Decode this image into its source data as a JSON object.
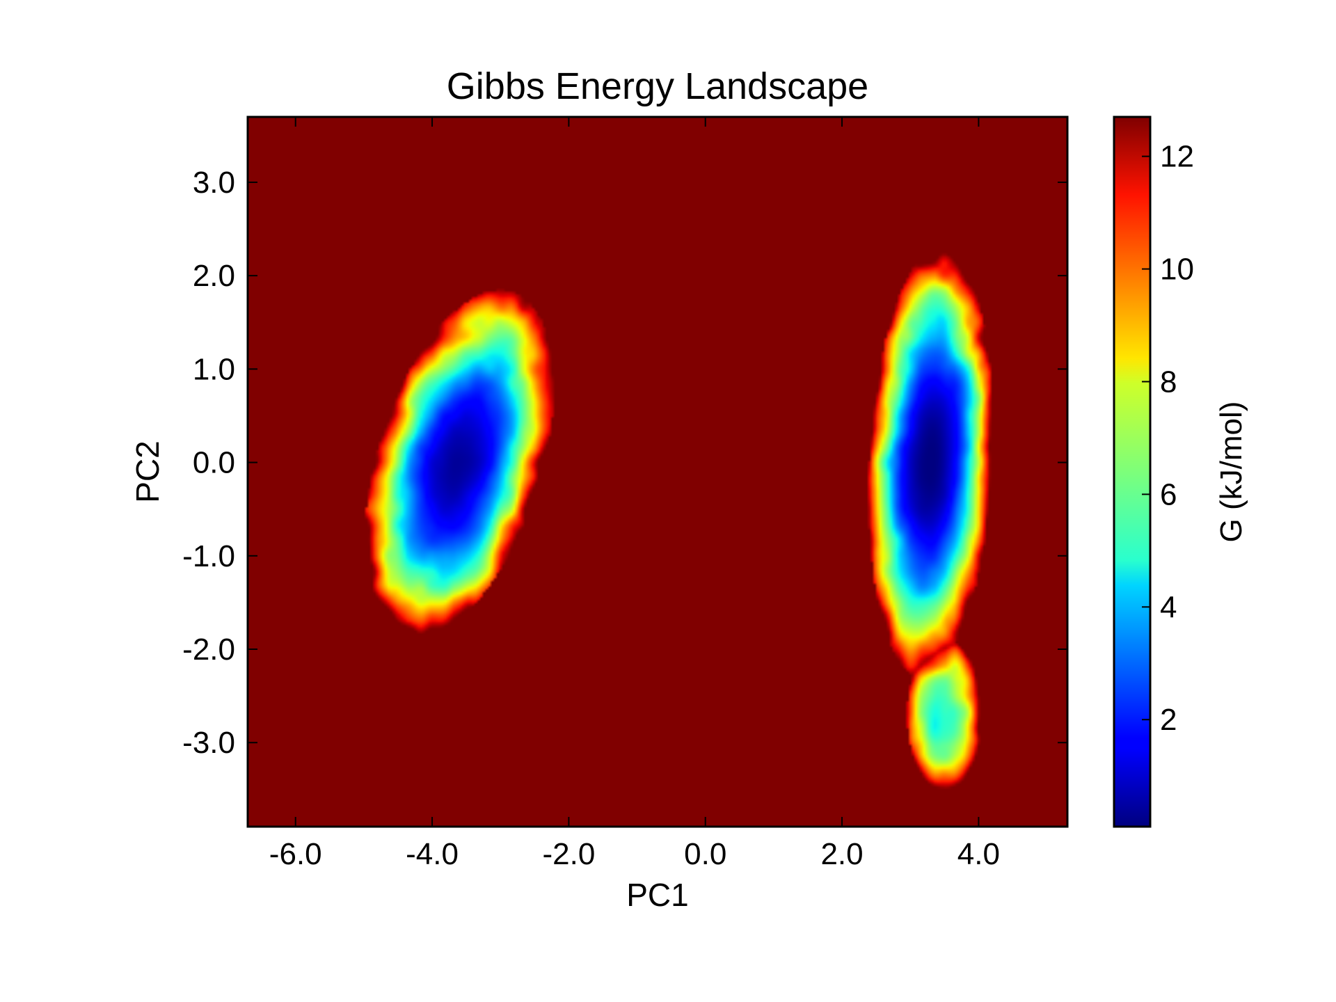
{
  "chart_data": {
    "type": "heatmap",
    "title": "Gibbs Energy Landscape",
    "xlabel": "PC1",
    "ylabel": "PC2",
    "colorbar_label": "G (kJ/mol)",
    "xlim": [
      -6.7,
      5.3
    ],
    "ylim": [
      -3.9,
      3.7
    ],
    "x_ticks": [
      -6.0,
      -4.0,
      -2.0,
      0.0,
      2.0,
      4.0
    ],
    "x_tick_labels": [
      "-6.0",
      "-4.0",
      "-2.0",
      "0.0",
      "2.0",
      "4.0"
    ],
    "y_ticks": [
      3.0,
      2.0,
      1.0,
      0.0,
      -1.0,
      -2.0,
      -3.0
    ],
    "y_tick_labels": [
      "3.0",
      "2.0",
      "1.0",
      "0.0",
      "-1.0",
      "-2.0",
      "-3.0"
    ],
    "colorbar_range": [
      0.1,
      12.7
    ],
    "colorbar_ticks": [
      2,
      4,
      6,
      8,
      10,
      12
    ],
    "colorbar_tick_labels": [
      "2",
      "4",
      "6",
      "8",
      "10",
      "12"
    ],
    "colormap": "jet",
    "background_value": 12.7,
    "grid": false,
    "basins": [
      {
        "center": [
          -3.6,
          0.0
        ],
        "min_energy": 0.5,
        "sigma_major": 2.0,
        "sigma_minor": 1.15,
        "tilt_deg": 62
      },
      {
        "center": [
          3.3,
          0.0
        ],
        "min_energy": 0.1,
        "sigma_major": 2.3,
        "sigma_minor": 0.9,
        "tilt_deg": 86
      },
      {
        "center": [
          3.5,
          -2.7
        ],
        "min_energy": 5.0,
        "sigma_major": 0.8,
        "sigma_minor": 0.55,
        "tilt_deg": 90
      }
    ],
    "colors": {
      "frame": "#000000",
      "background": "#800000"
    }
  }
}
